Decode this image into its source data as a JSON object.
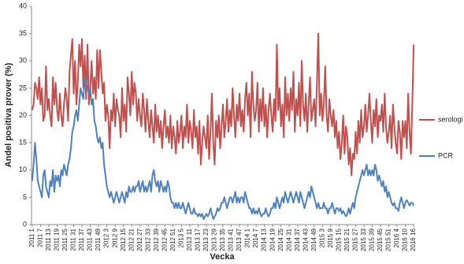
{
  "chart_data": {
    "type": "line",
    "x_label": "Vecka",
    "y_label": "Andel positiva prover (%)",
    "categories": [
      "2011 1",
      null,
      null,
      null,
      null,
      null,
      "2011 7",
      null,
      null,
      null,
      null,
      null,
      "2011 13",
      null,
      null,
      null,
      null,
      null,
      "2011 19",
      null,
      null,
      null,
      null,
      null,
      "2011 25",
      null,
      null,
      null,
      null,
      null,
      "2011 31",
      null,
      null,
      null,
      null,
      null,
      "2011 37",
      null,
      null,
      null,
      null,
      null,
      "2011 43",
      null,
      null,
      null,
      null,
      null,
      "2011 49",
      null,
      null,
      null,
      null,
      null,
      "2012 3",
      null,
      null,
      null,
      null,
      null,
      "2012 9",
      null,
      null,
      null,
      null,
      null,
      "2012 15",
      null,
      null,
      null,
      null,
      null,
      "2012 21",
      null,
      null,
      null,
      null,
      null,
      "2012 27",
      null,
      null,
      null,
      null,
      null,
      "2012 33",
      null,
      null,
      null,
      null,
      null,
      "2012 39",
      null,
      null,
      null,
      null,
      null,
      "2012 45",
      null,
      null,
      null,
      null,
      null,
      "2012 51",
      null,
      null,
      null,
      null,
      null,
      "2013 5",
      null,
      null,
      null,
      null,
      null,
      "2013 11",
      null,
      null,
      null,
      null,
      null,
      "2013 17",
      null,
      null,
      null,
      null,
      null,
      "2013 23",
      null,
      null,
      null,
      null,
      null,
      "2013 29",
      null,
      null,
      null,
      null,
      null,
      "2013 35",
      null,
      null,
      null,
      null,
      null,
      "2013 41",
      null,
      null,
      null,
      null,
      null,
      "2013 47",
      null,
      null,
      null,
      null,
      null,
      "2014 1",
      null,
      null,
      null,
      null,
      null,
      "2014 7",
      null,
      null,
      null,
      null,
      null,
      "2014 13",
      null,
      null,
      null,
      null,
      null,
      "2014 19",
      null,
      null,
      null,
      null,
      null,
      "2014 25",
      null,
      null,
      null,
      null,
      null,
      "2014 31",
      null,
      null,
      null,
      null,
      null,
      "2014 37",
      null,
      null,
      null,
      null,
      null,
      "2014 43",
      null,
      null,
      null,
      null,
      null,
      "2014 49",
      null,
      null,
      null,
      null,
      null,
      "2015 3",
      null,
      null,
      null,
      null,
      null,
      "2015 9",
      null,
      null,
      null,
      null,
      null,
      "2015 15",
      null,
      null,
      null,
      null,
      null,
      "2015 21",
      null,
      null,
      null,
      null,
      null,
      "2015 27",
      null,
      null,
      null,
      null,
      null,
      "2015 33",
      null,
      null,
      null,
      null,
      null,
      "2015 39",
      null,
      null,
      null,
      null,
      null,
      "2015 45",
      null,
      null,
      null,
      null,
      null,
      "2015 51",
      null,
      null,
      null,
      null,
      null,
      "2016 4",
      null,
      null,
      null,
      null,
      null,
      "2016 10",
      null,
      null,
      null,
      null,
      null,
      "2016 16"
    ],
    "series": [
      {
        "name": "serologi",
        "color": "#c0504d",
        "values": [
          21,
          22,
          26,
          25,
          23,
          27,
          22,
          25,
          19,
          20,
          29,
          21,
          23,
          20,
          18,
          27,
          22,
          26,
          21,
          19,
          24,
          20,
          18,
          22,
          25,
          23,
          19,
          28,
          31,
          34,
          24,
          30,
          22,
          26,
          33,
          29,
          34,
          25,
          31,
          23,
          33,
          22,
          25,
          30,
          24,
          27,
          23,
          32,
          25,
          32,
          28,
          24,
          26,
          19,
          22,
          20,
          14,
          21,
          19,
          24,
          18,
          23,
          21,
          20,
          16,
          25,
          19,
          22,
          17,
          27,
          24,
          20,
          28,
          22,
          26,
          24,
          19,
          23,
          20,
          18,
          24,
          21,
          17,
          23,
          19,
          16,
          21,
          18,
          15,
          22,
          17,
          20,
          16,
          19,
          14,
          18,
          21,
          16,
          18,
          15,
          20,
          14,
          18,
          16,
          13,
          19,
          15,
          17,
          20,
          14,
          18,
          16,
          22,
          15,
          19,
          17,
          14,
          21,
          16,
          18,
          13,
          19,
          11,
          15,
          18,
          16,
          14,
          20,
          12,
          17,
          24,
          15,
          11,
          19,
          16,
          20,
          14,
          18,
          22,
          16,
          19,
          23,
          17,
          21,
          18,
          25,
          20,
          16,
          22,
          19,
          24,
          18,
          21,
          17,
          23,
          26,
          20,
          24,
          16,
          28,
          22,
          19,
          21,
          26,
          17,
          23,
          19,
          25,
          18,
          22,
          16,
          21,
          24,
          20,
          17,
          23,
          19,
          33,
          21,
          25,
          18,
          22,
          16,
          27,
          20,
          24,
          19,
          25,
          21,
          28,
          17,
          23,
          20,
          26,
          18,
          30,
          22,
          19,
          24,
          17,
          22,
          27,
          19,
          21,
          23,
          18,
          26,
          35,
          20,
          24,
          19,
          22,
          29,
          20,
          17,
          23,
          20,
          18,
          21,
          16,
          19,
          14,
          17,
          12,
          15,
          20,
          13,
          18,
          16,
          11,
          14,
          9,
          13,
          12,
          17,
          13,
          19,
          15,
          21,
          16,
          18,
          22,
          17,
          20,
          24,
          19,
          15,
          21,
          18,
          23,
          16,
          20,
          19,
          22,
          17,
          24,
          18,
          15,
          17,
          20,
          14,
          22,
          18,
          15,
          13,
          19,
          17,
          12,
          19,
          16,
          19,
          14,
          24,
          17,
          13,
          22,
          33
        ]
      },
      {
        "name": "PCR",
        "color": "#4f81bd",
        "values": [
          8,
          11,
          15,
          12,
          8,
          7,
          6,
          5,
          9,
          10,
          7,
          6,
          5,
          8,
          7,
          10,
          6,
          9,
          8,
          9,
          7,
          10,
          9,
          11,
          10,
          9,
          11,
          12,
          14,
          17,
          18,
          20,
          21,
          19,
          22,
          25,
          24,
          23,
          27,
          26,
          25,
          24,
          25,
          22,
          23,
          19,
          18,
          16,
          15,
          16,
          14,
          15,
          11,
          9,
          7,
          6,
          5,
          6,
          5,
          4,
          5,
          6,
          5,
          4,
          5,
          6,
          5,
          4,
          6,
          5,
          7,
          6,
          6,
          7,
          6,
          7,
          7,
          8,
          6,
          7,
          8,
          6,
          7,
          6,
          7,
          8,
          6,
          9,
          10,
          8,
          7,
          8,
          6,
          8,
          7,
          6,
          7,
          6,
          8,
          7,
          5,
          4,
          4,
          3,
          4,
          3,
          4,
          3,
          3,
          4,
          3,
          2,
          3,
          4,
          3,
          2,
          2,
          3,
          2,
          2,
          1.5,
          2,
          1.5,
          2,
          1,
          1.5,
          2,
          1.5,
          2,
          3,
          2,
          1,
          1.5,
          2,
          3,
          2.5,
          3,
          4,
          4,
          5,
          4,
          3,
          4,
          5,
          5,
          4,
          5,
          6,
          4,
          5,
          4,
          5,
          5,
          4,
          6,
          5,
          4,
          3,
          3,
          2,
          3,
          2,
          2.5,
          2,
          3,
          2,
          1.5,
          2,
          2,
          3,
          2,
          1.5,
          2,
          3,
          3,
          4,
          3,
          5,
          4,
          3,
          4,
          5,
          4,
          6,
          5,
          4,
          5,
          6,
          5,
          4,
          5,
          6,
          5,
          4,
          6,
          5,
          4,
          3,
          4,
          5,
          6,
          5,
          7,
          6,
          5,
          4,
          3,
          4,
          3,
          3,
          3,
          4,
          3,
          3,
          2,
          3,
          3,
          4,
          3,
          2,
          3,
          3,
          2.5,
          3,
          2,
          2.5,
          2,
          1.5,
          2,
          3,
          2,
          3,
          4,
          3,
          5,
          6,
          7,
          8,
          9,
          10,
          9,
          10,
          11,
          9,
          10,
          9,
          10,
          9,
          11,
          10,
          8,
          9,
          8,
          7,
          8,
          6,
          7,
          5,
          6,
          5,
          4,
          3.5,
          4,
          3,
          3,
          2.5,
          4,
          5,
          4,
          3,
          4,
          4.5,
          4,
          3.5,
          4,
          4,
          3.5
        ]
      }
    ],
    "ylim": [
      0,
      40
    ],
    "yticks": [
      0,
      5,
      10,
      15,
      20,
      25,
      30,
      35,
      40
    ],
    "grid": false,
    "legend": "right"
  }
}
